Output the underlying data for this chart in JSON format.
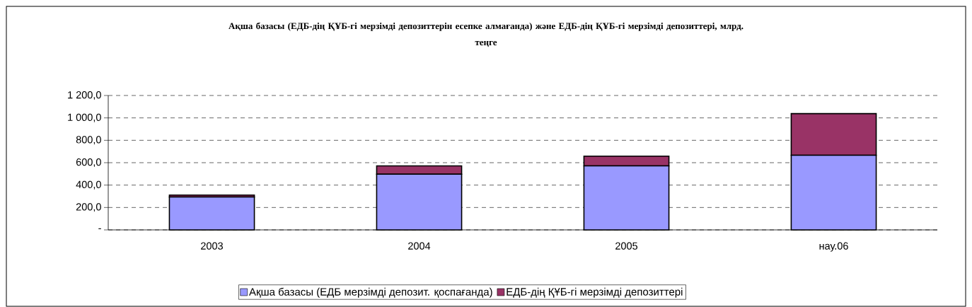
{
  "chart_data": {
    "type": "bar",
    "stacked": true,
    "title": "Ақша базасы (ЕДБ-дің ҚҰБ-гі мерзімді депозиттерін есепке алмағанда) және ЕДБ-дің ҚҰБ-гі мерзімді депозиттері, млрд. теңге",
    "categories": [
      "2003",
      "2004",
      "2005",
      "нау.06"
    ],
    "series": [
      {
        "name": "Ақша базасы (ЕДБ мерзімді депозит. қоспағанда)",
        "color": "#9999ff",
        "values": [
          294,
          497,
          572,
          666
        ]
      },
      {
        "name": "ЕДБ-дің ҚҰБ-гі мерзімді депозиттері",
        "color": "#993366",
        "values": [
          17,
          75,
          86,
          372
        ]
      }
    ],
    "ylim": [
      0,
      1200
    ],
    "yticks": [
      {
        "value": 0,
        "label": "-"
      },
      {
        "value": 200,
        "label": "200,0"
      },
      {
        "value": 400,
        "label": "400,0"
      },
      {
        "value": 600,
        "label": "600,0"
      },
      {
        "value": 800,
        "label": "800,0"
      },
      {
        "value": 1000,
        "label": "1 000,0"
      },
      {
        "value": 1200,
        "label": "1 200,0"
      }
    ],
    "grid": "y",
    "legend": "bottom"
  }
}
